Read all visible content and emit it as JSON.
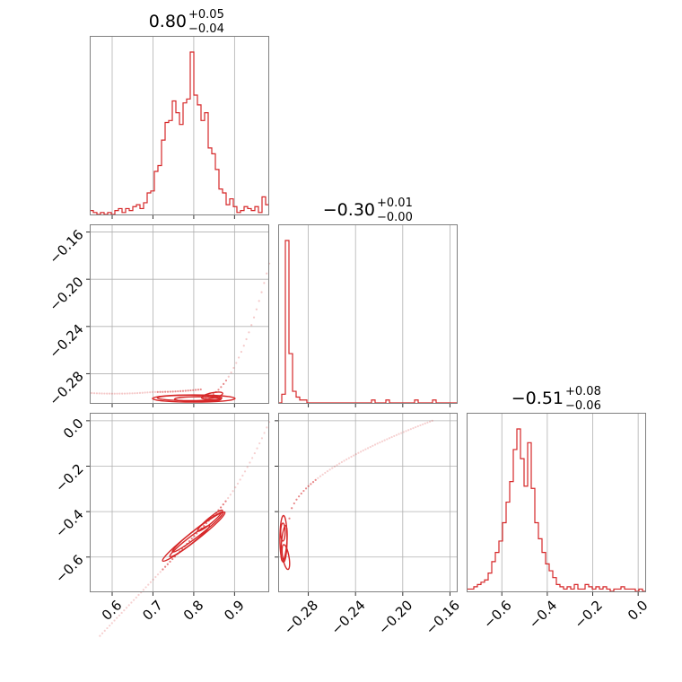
{
  "chart_data": {
    "type": "corner",
    "color": "#d62728",
    "grid": true,
    "parameters": [
      {
        "median": "0.80",
        "plus": "+0.05",
        "minus": "−0.04",
        "range": [
          0.545,
          0.985
        ],
        "ticks": [
          0.6,
          0.7,
          0.8,
          0.9
        ],
        "tick_labels": [
          "0.6",
          "0.7",
          "0.8",
          "0.9"
        ]
      },
      {
        "median": "−0.30",
        "plus": "+0.01",
        "minus": "−0.00",
        "range": [
          -0.3055,
          -0.1535
        ],
        "ticks": [
          -0.28,
          -0.24,
          -0.2,
          -0.16
        ],
        "tick_labels": [
          "−0.28",
          "−0.24",
          "−0.20",
          "−0.16"
        ]
      },
      {
        "median": "−0.51",
        "plus": "+0.08",
        "minus": "−0.06",
        "range": [
          -0.755,
          0.035
        ],
        "ticks": [
          -0.6,
          -0.4,
          -0.2,
          0.0
        ],
        "tick_labels": [
          "−0.6",
          "−0.4",
          "−0.2",
          "0.0"
        ]
      }
    ],
    "histograms": [
      {
        "edges_range": [
          0.545,
          0.985
        ],
        "bins": 50,
        "counts": [
          2,
          1,
          0,
          1,
          0,
          1,
          0,
          2,
          3,
          1,
          3,
          2,
          4,
          5,
          3,
          6,
          11,
          12,
          22,
          25,
          38,
          47,
          48,
          58,
          52,
          46,
          57,
          59,
          83,
          61,
          56,
          48,
          52,
          34,
          31,
          23,
          13,
          11,
          5,
          8,
          4,
          1,
          2,
          4,
          3,
          2,
          4,
          1,
          9,
          5
        ]
      },
      {
        "edges_range": [
          -0.3055,
          -0.1535
        ],
        "bins": 50,
        "counts": [
          0,
          3,
          56,
          17,
          4,
          2,
          1,
          1,
          0,
          0,
          0,
          0,
          0,
          0,
          0,
          0,
          0,
          0,
          0,
          0,
          0,
          0,
          0,
          0,
          0,
          0,
          1,
          0,
          0,
          0,
          1,
          0,
          0,
          0,
          0,
          0,
          0,
          0,
          1,
          0,
          0,
          0,
          0,
          1,
          0,
          0,
          0,
          0,
          0,
          0
        ]
      },
      {
        "edges_range": [
          -0.755,
          0.035
        ],
        "bins": 50,
        "counts": [
          1,
          1,
          2,
          3,
          4,
          5,
          8,
          13,
          17,
          22,
          30,
          39,
          48,
          62,
          71,
          58,
          46,
          65,
          45,
          30,
          23,
          17,
          12,
          9,
          6,
          3,
          2,
          1,
          2,
          1,
          3,
          1,
          1,
          3,
          2,
          1,
          2,
          1,
          2,
          1,
          0,
          1,
          1,
          2,
          1,
          1,
          1,
          0,
          1,
          0
        ]
      }
    ]
  }
}
